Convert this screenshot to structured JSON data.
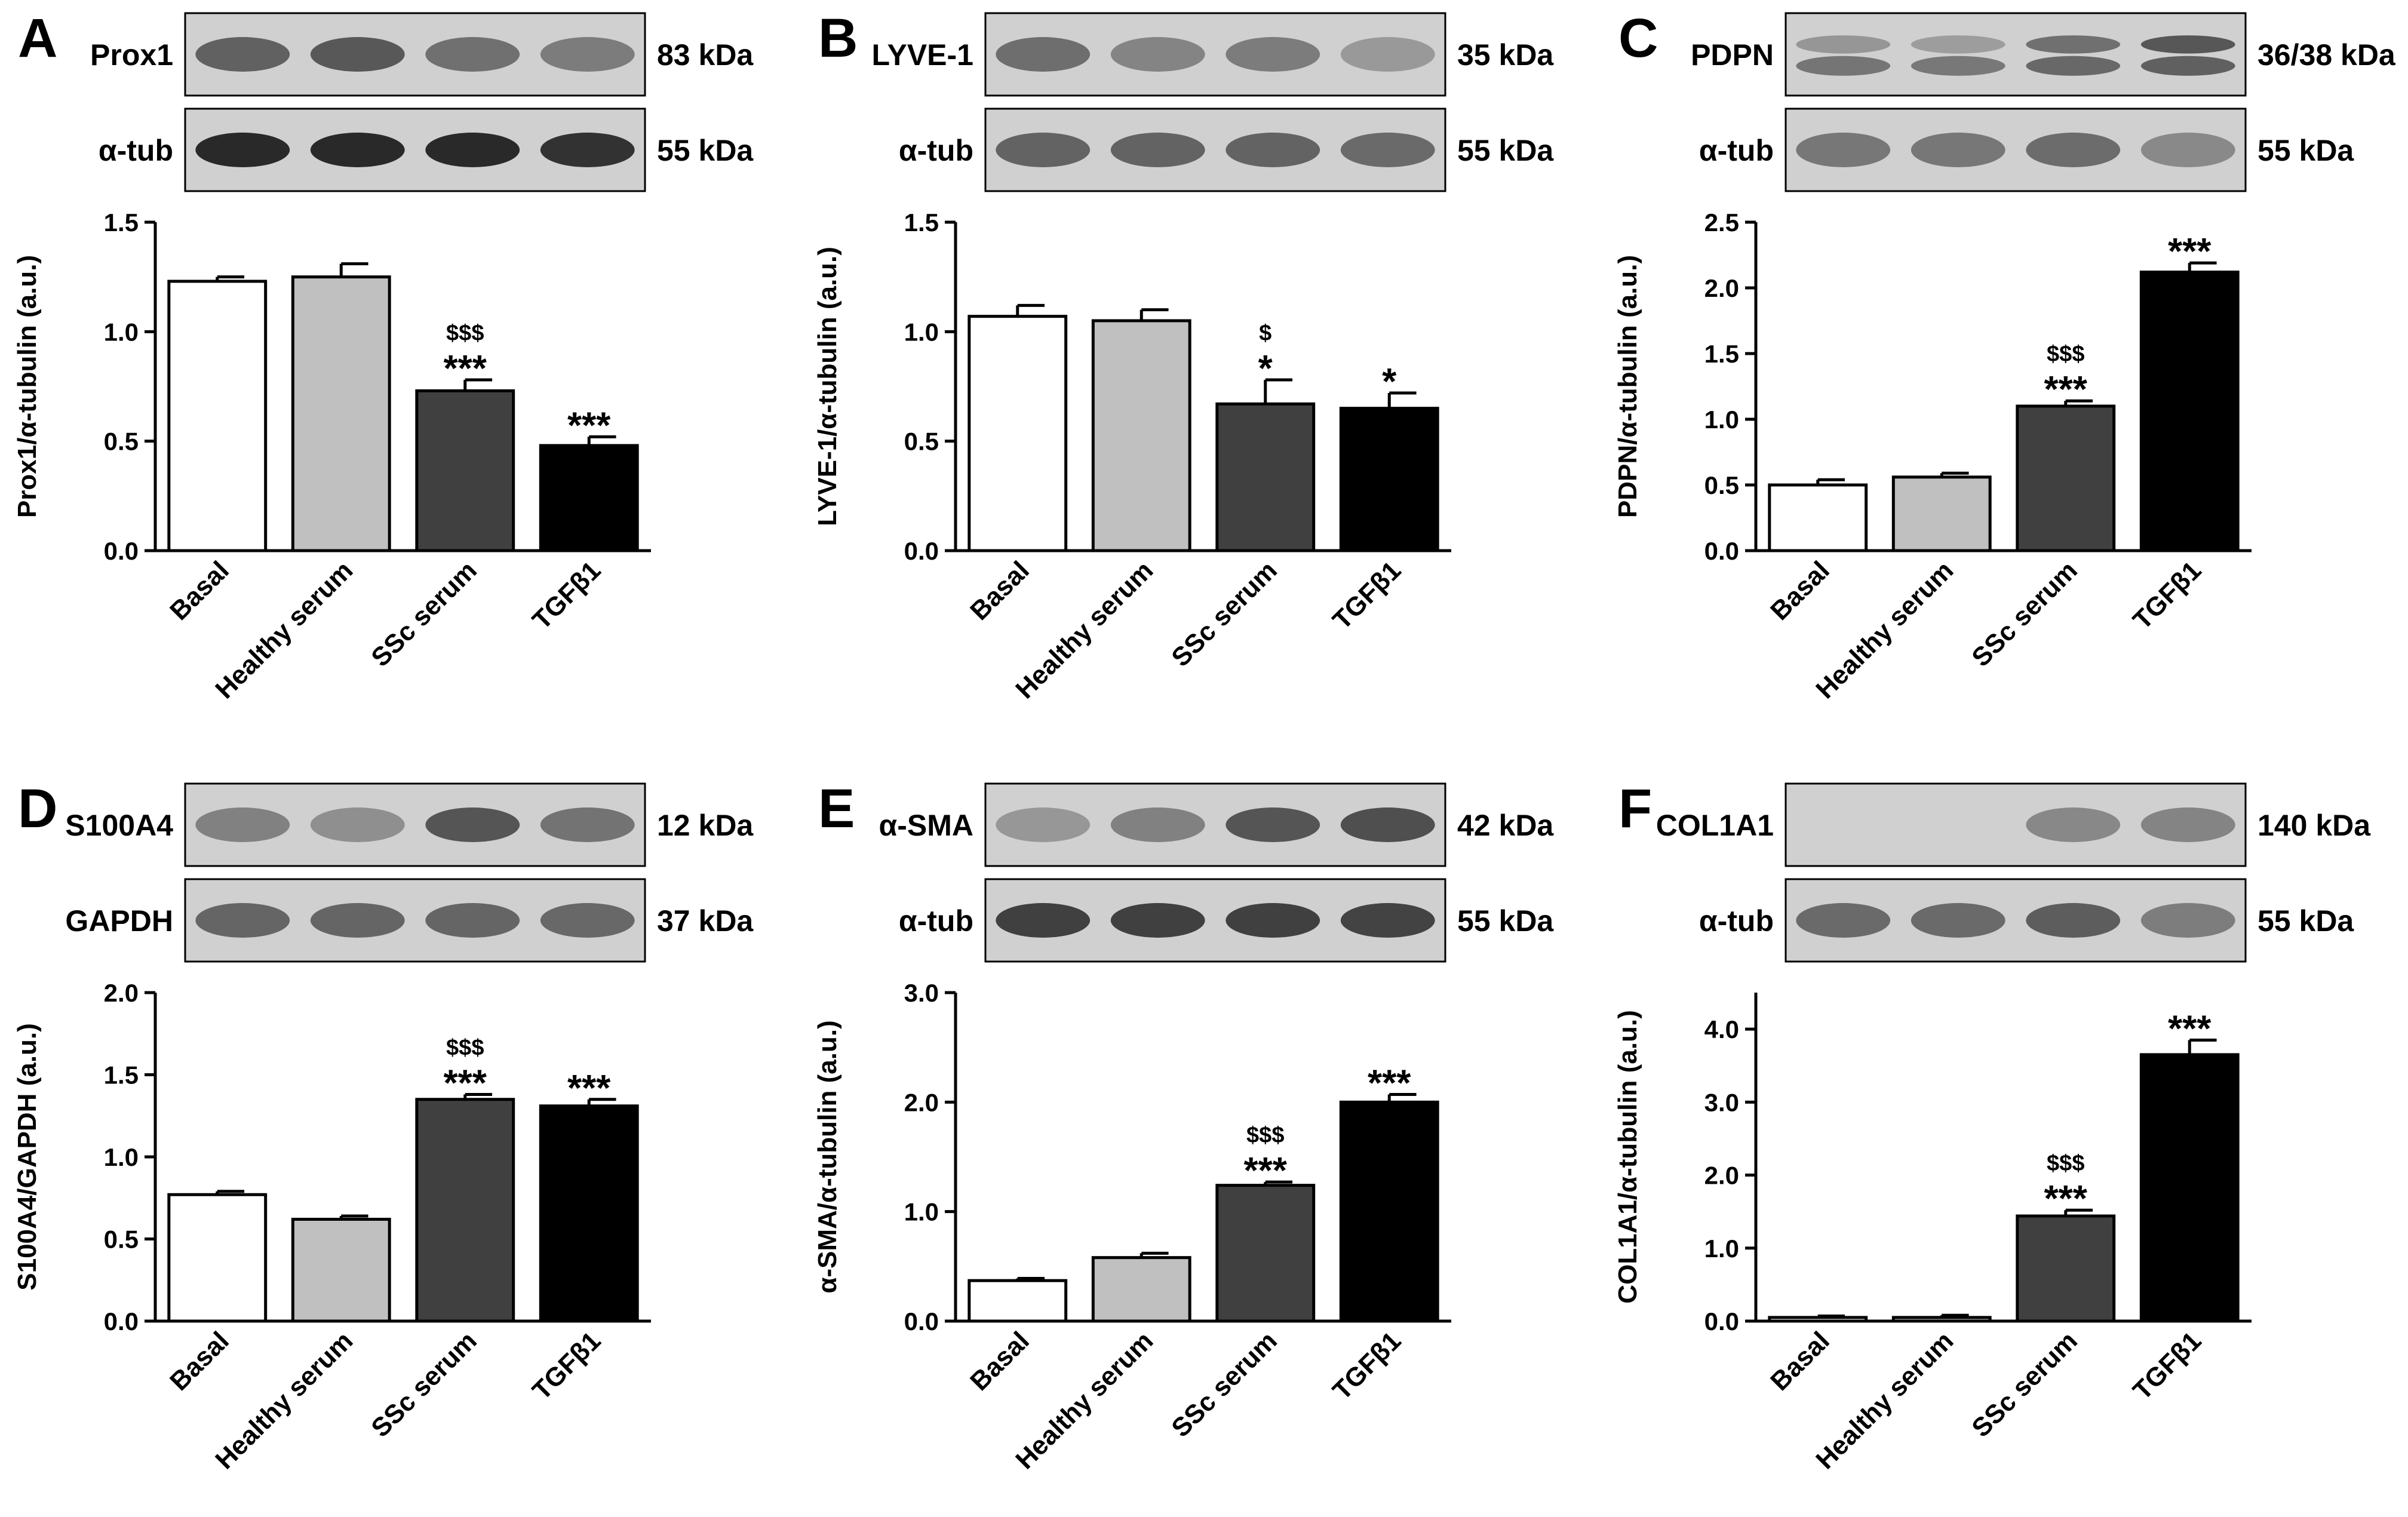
{
  "panels": [
    {
      "letter": "A",
      "blot": {
        "rows": [
          {
            "label": "Prox1",
            "kda": "83 kDa",
            "bands": [
              0.72,
              0.78,
              0.62,
              0.55
            ],
            "colors": [
              "#808080",
              "#363636"
            ],
            "doublet": false
          },
          {
            "label": "α-tub",
            "kda": "55 kDa",
            "bands": [
              0.95,
              0.95,
              0.95,
              0.9
            ],
            "colors": [
              "#707070",
              "#202020"
            ],
            "doublet": false
          }
        ]
      },
      "chart": {
        "ylabel": "Prox1/α-tubulin (a.u.)",
        "ylim": [
          0,
          1.5
        ],
        "ticks": [
          "0.0",
          "0.5",
          "1.0",
          "1.5"
        ],
        "categories": [
          "Basal",
          "Healthy serum",
          "SSc serum",
          "TGFβ1"
        ],
        "values": [
          1.23,
          1.25,
          0.73,
          0.48
        ],
        "errors": [
          0.02,
          0.06,
          0.05,
          0.04
        ],
        "stars": [
          "",
          "",
          "***",
          "***"
        ],
        "dollars": [
          "",
          "",
          "$$$",
          ""
        ]
      }
    },
    {
      "letter": "B",
      "blot": {
        "rows": [
          {
            "label": "LYVE-1",
            "kda": "35 kDa",
            "bands": [
              0.7,
              0.55,
              0.6,
              0.4
            ],
            "colors": [
              "#9a9a9a",
              "#454545"
            ],
            "doublet": false
          },
          {
            "label": "α-tub",
            "kda": "55 kDa",
            "bands": [
              0.85,
              0.85,
              0.85,
              0.8
            ],
            "colors": [
              "#a0a0a0",
              "#505050"
            ],
            "doublet": false
          }
        ]
      },
      "chart": {
        "ylabel": "LYVE-1/α-tubulin (a.u.)",
        "ylim": [
          0,
          1.5
        ],
        "ticks": [
          "0.0",
          "0.5",
          "1.0",
          "1.5"
        ],
        "categories": [
          "Basal",
          "Healthy serum",
          "SSc serum",
          "TGFβ1"
        ],
        "values": [
          1.07,
          1.05,
          0.67,
          0.65
        ],
        "errors": [
          0.05,
          0.05,
          0.11,
          0.07
        ],
        "stars": [
          "",
          "",
          "*",
          "*"
        ],
        "dollars": [
          "",
          "",
          "$",
          ""
        ]
      }
    },
    {
      "letter": "C",
      "blot": {
        "rows": [
          {
            "label": "PDPN",
            "kda": "36/38 kDa",
            "bands": [
              0.45,
              0.4,
              0.75,
              0.95
            ],
            "colors": [
              "#aaaaaa",
              "#505050"
            ],
            "doublet": true
          },
          {
            "label": "α-tub",
            "kda": "55 kDa",
            "bands": [
              0.75,
              0.75,
              0.85,
              0.6
            ],
            "colors": [
              "#a8a8a8",
              "#5a5a5a"
            ],
            "doublet": false
          }
        ]
      },
      "chart": {
        "ylabel": "PDPN/α-tubulin (a.u.)",
        "ylim": [
          0,
          2.5
        ],
        "ticks": [
          "0.0",
          "0.5",
          "1.0",
          "1.5",
          "2.0",
          "2.5"
        ],
        "categories": [
          "Basal",
          "Healthy serum",
          "SSc serum",
          "TGFβ1"
        ],
        "values": [
          0.5,
          0.56,
          1.1,
          2.12
        ],
        "errors": [
          0.04,
          0.03,
          0.04,
          0.07
        ],
        "stars": [
          "",
          "",
          "***",
          "***"
        ],
        "dollars": [
          "",
          "",
          "$$$",
          ""
        ]
      }
    },
    {
      "letter": "D",
      "blot": {
        "rows": [
          {
            "label": "S100A4",
            "kda": "12 kDa",
            "bands": [
              0.55,
              0.45,
              0.85,
              0.65
            ],
            "colors": [
              "#9a9a9a",
              "#404040"
            ],
            "doublet": false
          },
          {
            "label": "GAPDH",
            "kda": "37 kDa",
            "bands": [
              0.8,
              0.8,
              0.8,
              0.78
            ],
            "colors": [
              "#a0a0a0",
              "#4a4a4a"
            ],
            "doublet": false
          }
        ]
      },
      "chart": {
        "ylabel": "S100A4/GAPDH (a.u.)",
        "ylim": [
          0,
          2.0
        ],
        "ticks": [
          "0.0",
          "0.5",
          "1.0",
          "1.5",
          "2.0"
        ],
        "categories": [
          "Basal",
          "Healthy serum",
          "SSc serum",
          "TGFβ1"
        ],
        "values": [
          0.77,
          0.62,
          1.35,
          1.31
        ],
        "errors": [
          0.02,
          0.02,
          0.03,
          0.04
        ],
        "stars": [
          "",
          "",
          "***",
          "***"
        ],
        "dollars": [
          "",
          "",
          "$$$",
          ""
        ]
      }
    },
    {
      "letter": "E",
      "blot": {
        "rows": [
          {
            "label": "α-SMA",
            "kda": "42 kDa",
            "bands": [
              0.4,
              0.55,
              0.85,
              0.9
            ],
            "colors": [
              "#a0a0a0",
              "#404040"
            ],
            "doublet": false
          },
          {
            "label": "α-tub",
            "kda": "55 kDa",
            "bands": [
              0.92,
              0.92,
              0.92,
              0.9
            ],
            "colors": [
              "#8a8a8a",
              "#333333"
            ],
            "doublet": false
          }
        ]
      },
      "chart": {
        "ylabel": "α-SMA/α-tubulin (a.u.)",
        "ylim": [
          0,
          3.0
        ],
        "ticks": [
          "0.0",
          "1.0",
          "2.0",
          "3.0"
        ],
        "categories": [
          "Basal",
          "Healthy serum",
          "SSc serum",
          "TGFβ1"
        ],
        "values": [
          0.37,
          0.58,
          1.24,
          2.0
        ],
        "errors": [
          0.02,
          0.04,
          0.03,
          0.07
        ],
        "stars": [
          "",
          "",
          "***",
          "***"
        ],
        "dollars": [
          "",
          "",
          "$$$",
          ""
        ]
      }
    },
    {
      "letter": "F",
      "blot": {
        "rows": [
          {
            "label": "COL1A1",
            "kda": "140 kDa",
            "bands": [
              0.0,
              0.0,
              0.75,
              0.8
            ],
            "colors": [
              "#b8b8b8",
              "#707070"
            ],
            "doublet": false
          },
          {
            "label": "α-tub",
            "kda": "55 kDa",
            "bands": [
              0.8,
              0.8,
              0.9,
              0.65
            ],
            "colors": [
              "#a0a0a0",
              "#505050"
            ],
            "doublet": false
          }
        ]
      },
      "chart": {
        "ylabel": "COL1A1/α-tubulin (a.u.)",
        "ylim": [
          0,
          4.5
        ],
        "ticks": [
          "0.0",
          "1.0",
          "2.0",
          "3.0",
          "4.0"
        ],
        "categories": [
          "Basal",
          "Healthy serum",
          "SSc serum",
          "TGFβ1"
        ],
        "values": [
          0.05,
          0.05,
          1.44,
          3.65
        ],
        "errors": [
          0.02,
          0.03,
          0.08,
          0.2
        ],
        "stars": [
          "",
          "",
          "***",
          "***"
        ],
        "dollars": [
          "",
          "",
          "$$$",
          ""
        ]
      }
    }
  ],
  "bar_colors": [
    "#ffffff",
    "#c0c0c0",
    "#404040",
    "#000000"
  ]
}
